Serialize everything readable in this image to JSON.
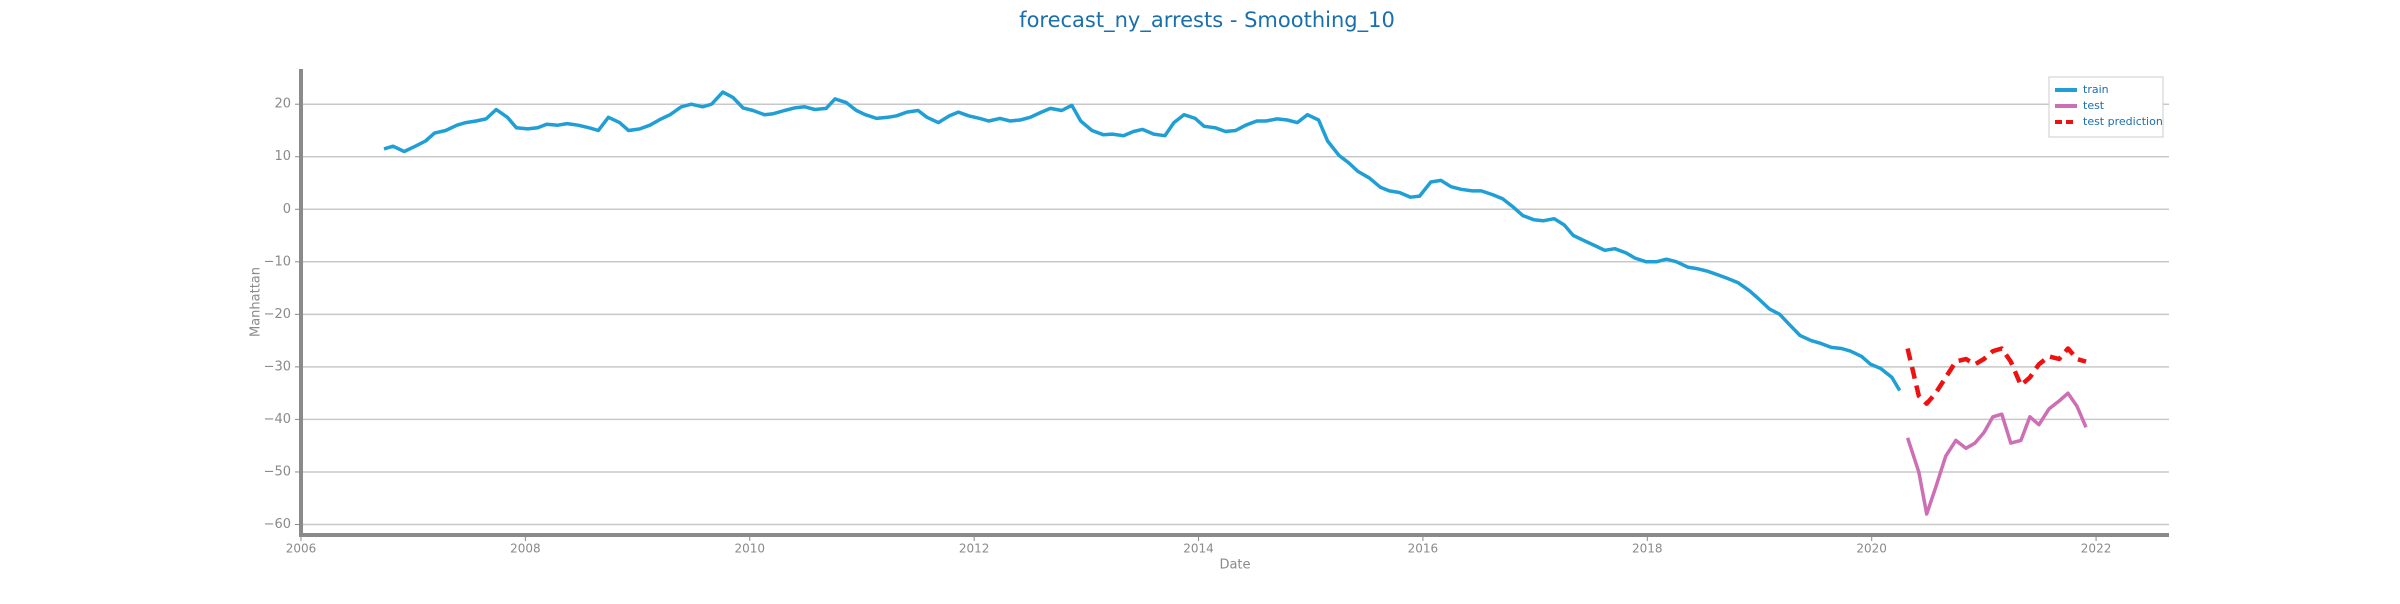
{
  "chart_data": {
    "type": "line",
    "title": "forecast_ny_arrests - Smoothing_10",
    "x_label": "Date",
    "y_label": "Manhattan",
    "xlim": [
      2006,
      2022.65
    ],
    "ylim": [
      -62,
      26.7
    ],
    "xticks": [
      2006,
      2008,
      2010,
      2012,
      2014,
      2016,
      2018,
      2020,
      2022
    ],
    "yticks": [
      {
        "value": -60,
        "label": "−60"
      },
      {
        "value": -50,
        "label": "−50"
      },
      {
        "value": -40,
        "label": "−40"
      },
      {
        "value": -30,
        "label": "−30"
      },
      {
        "value": -20,
        "label": "−20"
      },
      {
        "value": -10,
        "label": "−10"
      },
      0,
      10,
      20
    ],
    "grid": true,
    "legend": "upper right",
    "series": [
      {
        "name": "train",
        "color": "#1f9fd6",
        "linestyle": "solid",
        "x": [
          2006.74,
          2006.82,
          2006.92,
          2007.02,
          2007.11,
          2007.19,
          2007.29,
          2007.39,
          2007.47,
          2007.56,
          2007.65,
          2007.74,
          2007.84,
          2007.92,
          2008.02,
          2008.11,
          2008.19,
          2008.29,
          2008.37,
          2008.47,
          2008.57,
          2008.65,
          2008.74,
          2008.84,
          2008.92,
          2009.02,
          2009.11,
          2009.21,
          2009.29,
          2009.39,
          2009.48,
          2009.58,
          2009.66,
          2009.76,
          2009.85,
          2009.94,
          2010.03,
          2010.13,
          2010.21,
          2010.31,
          2010.4,
          2010.49,
          2010.58,
          2010.68,
          2010.76,
          2010.86,
          2010.95,
          2011.03,
          2011.13,
          2011.23,
          2011.31,
          2011.4,
          2011.5,
          2011.58,
          2011.68,
          2011.78,
          2011.86,
          2011.95,
          2012.05,
          2012.13,
          2012.23,
          2012.32,
          2012.41,
          2012.5,
          2012.6,
          2012.68,
          2012.78,
          2012.87,
          2012.95,
          2013.05,
          2013.15,
          2013.23,
          2013.33,
          2013.42,
          2013.5,
          2013.6,
          2013.7,
          2013.78,
          2013.87,
          2013.97,
          2014.05,
          2014.15,
          2014.24,
          2014.33,
          2014.42,
          2014.52,
          2014.6,
          2014.7,
          2014.79,
          2014.88,
          2014.97,
          2015.07,
          2015.15,
          2015.25,
          2015.34,
          2015.42,
          2015.52,
          2015.62,
          2015.7,
          2015.79,
          2015.89,
          2015.97,
          2016.07,
          2016.16,
          2016.25,
          2016.34,
          2016.44,
          2016.52,
          2016.62,
          2016.71,
          2016.8,
          2016.89,
          2016.99,
          2017.07,
          2017.17,
          2017.26,
          2017.34,
          2017.44,
          2017.54,
          2017.62,
          2017.71,
          2017.81,
          2017.89,
          2017.99,
          2018.08,
          2018.17,
          2018.26,
          2018.36,
          2018.44,
          2018.54,
          2018.63,
          2018.72,
          2018.81,
          2018.91,
          2018.99,
          2019.09,
          2019.18,
          2019.26,
          2019.36,
          2019.46,
          2019.54,
          2019.64,
          2019.73,
          2019.81,
          2019.91,
          2019.99,
          2020.08,
          2020.18,
          2020.25
        ],
        "values": [
          11.5,
          12,
          11,
          12,
          13,
          14.5,
          15,
          16,
          16.5,
          16.8,
          17.2,
          19,
          17.5,
          15.5,
          15.3,
          15.5,
          16.2,
          16,
          16.3,
          16,
          15.5,
          15,
          17.5,
          16.5,
          15,
          15.3,
          16,
          17.2,
          18,
          19.5,
          20,
          19.5,
          20,
          22.3,
          21.3,
          19.3,
          18.8,
          18,
          18.2,
          18.8,
          19.3,
          19.5,
          19,
          19.2,
          21,
          20.3,
          18.8,
          18,
          17.3,
          17.5,
          17.8,
          18.5,
          18.8,
          17.5,
          16.5,
          17.8,
          18.5,
          17.8,
          17.3,
          16.8,
          17.3,
          16.8,
          17,
          17.5,
          18.5,
          19.2,
          18.8,
          19.8,
          16.8,
          15,
          14.2,
          14.3,
          14,
          14.8,
          15.2,
          14.3,
          14,
          16.5,
          18,
          17.3,
          15.8,
          15.5,
          14.8,
          15,
          16,
          16.8,
          16.8,
          17.2,
          17,
          16.5,
          18,
          17,
          13,
          10.3,
          8.8,
          7.2,
          6,
          4.2,
          3.5,
          3.2,
          2.3,
          2.5,
          5.2,
          5.5,
          4.3,
          3.8,
          3.5,
          3.5,
          2.8,
          2,
          0.5,
          -1.2,
          -2,
          -2.2,
          -1.8,
          -3,
          -5,
          -6,
          -7,
          -7.8,
          -7.5,
          -8.3,
          -9.3,
          -10,
          -10,
          -9.5,
          -10,
          -11,
          -11.3,
          -11.8,
          -12.5,
          -13.2,
          -14,
          -15.5,
          -17,
          -19,
          -20,
          -21.8,
          -24,
          -25,
          -25.5,
          -26.3,
          -26.5,
          -27,
          -28,
          -29.5,
          -30.3,
          -32,
          -34.5
        ]
      },
      {
        "name": "test",
        "color": "#cc6fb4",
        "linestyle": "solid",
        "x": [
          2020.32,
          2020.42,
          2020.49,
          2020.57,
          2020.66,
          2020.75,
          2020.84,
          2020.92,
          2021.0,
          2021.08,
          2021.16,
          2021.24,
          2021.33,
          2021.41,
          2021.49,
          2021.58,
          2021.67,
          2021.75,
          2021.83,
          2021.91
        ],
        "values": [
          -43.5,
          -50,
          -58,
          -53,
          -47,
          -44,
          -45.5,
          -44.5,
          -42.5,
          -39.5,
          -39,
          -44.5,
          -44,
          -39.5,
          -41,
          -38,
          -36.5,
          -35,
          -37.5,
          -41.5
        ]
      },
      {
        "name": "test prediction",
        "color": "#ee1111",
        "linestyle": "dashed",
        "x": [
          2020.32,
          2020.42,
          2020.49,
          2020.57,
          2020.66,
          2020.75,
          2020.84,
          2020.92,
          2021.0,
          2021.08,
          2021.16,
          2021.24,
          2021.33,
          2021.41,
          2021.49,
          2021.58,
          2021.67,
          2021.75,
          2021.83,
          2021.91
        ],
        "values": [
          -26.5,
          -35.5,
          -37,
          -35,
          -32,
          -29,
          -28.5,
          -29.5,
          -28.5,
          -27,
          -26.5,
          -29,
          -33.5,
          -32,
          -29.5,
          -28,
          -28.5,
          -26.5,
          -28.5,
          -29
        ]
      }
    ]
  }
}
